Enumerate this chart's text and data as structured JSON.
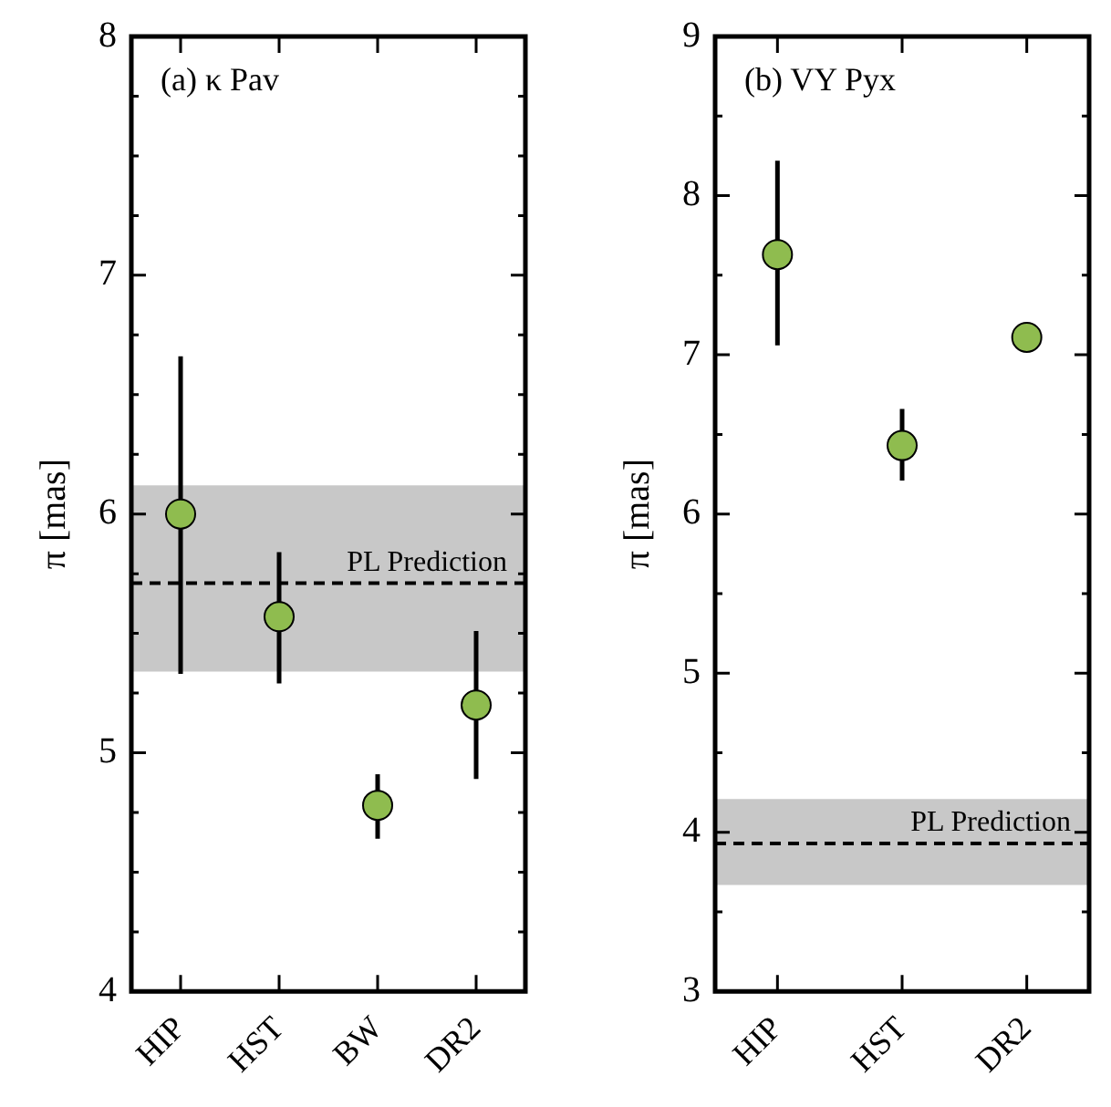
{
  "chart_data": [
    {
      "type": "scatter",
      "categories": [
        "HIP",
        "HST",
        "BW",
        "DR2"
      ],
      "ylabel": "π [mas]",
      "annotations": [
        "(a) κ Pav"
      ],
      "marker": "circle",
      "grid": false,
      "series": [
        {
          "color": "#8fbc4f",
          "values": [
            6.0,
            5.57,
            4.78,
            5.2
          ],
          "errors": [
            [
              5.33,
              6.66
            ],
            [
              5.29,
              5.84
            ],
            [
              4.64,
              4.91
            ],
            [
              4.89,
              5.51
            ]
          ]
        }
      ],
      "ylim": [
        4,
        8
      ],
      "yticks": [
        4,
        {
          "value": 4.25,
          "label": null
        },
        {
          "value": 4.5,
          "label": null
        },
        {
          "value": 4.75,
          "label": null
        },
        5,
        {
          "value": 5.25,
          "label": null
        },
        {
          "value": 5.5,
          "label": null
        },
        {
          "value": 5.75,
          "label": null
        },
        6,
        {
          "value": 6.25,
          "label": null
        },
        {
          "value": 6.5,
          "label": null
        },
        {
          "value": 6.75,
          "label": null
        },
        7,
        {
          "value": 7.25,
          "label": null
        },
        {
          "value": 7.5,
          "label": null
        },
        {
          "value": 7.75,
          "label": null
        },
        8
      ],
      "ref_lines": [
        {
          "axis": "y",
          "value": 5.71,
          "label": "PL Prediction",
          "line_style": "dashed",
          "color": "#000000"
        }
      ],
      "bands": [
        {
          "axis": "y",
          "from": 5.34,
          "to": 6.12,
          "color": "#c8c8c8"
        }
      ]
    },
    {
      "type": "scatter",
      "categories": [
        "HIP",
        "HST",
        "DR2"
      ],
      "ylabel": "π [mas]",
      "annotations": [
        "(b) VY Pyx"
      ],
      "marker": "circle",
      "grid": false,
      "series": [
        {
          "color": "#8fbc4f",
          "values": [
            7.63,
            6.43,
            7.11
          ],
          "errors": [
            [
              7.06,
              8.22
            ],
            [
              6.21,
              6.66
            ],
            null
          ]
        }
      ],
      "ylim": [
        3,
        9
      ],
      "yticks": [
        3,
        {
          "value": 3.5,
          "label": null
        },
        4,
        {
          "value": 4.5,
          "label": null
        },
        5,
        {
          "value": 5.5,
          "label": null
        },
        6,
        {
          "value": 6.5,
          "label": null
        },
        7,
        {
          "value": 7.5,
          "label": null
        },
        8,
        {
          "value": 8.5,
          "label": null
        },
        9
      ],
      "ref_lines": [
        {
          "axis": "y",
          "value": 3.93,
          "label": "PL Prediction",
          "line_style": "dashed",
          "color": "#000000"
        }
      ],
      "bands": [
        {
          "axis": "y",
          "from": 3.67,
          "to": 4.21,
          "color": "#c8c8c8"
        }
      ]
    }
  ]
}
